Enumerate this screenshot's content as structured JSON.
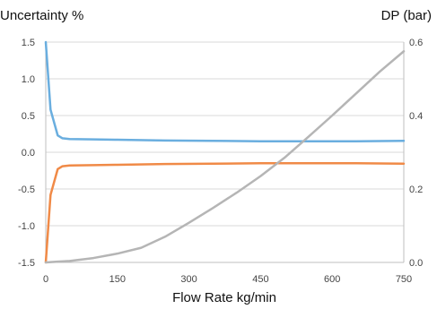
{
  "chart_data": {
    "type": "line",
    "title": "",
    "xlabel": "Flow Rate kg/min",
    "ylabel_left": "Uncertainty %",
    "ylabel_right": "DP (bar)",
    "xlim": [
      0,
      750
    ],
    "ylim_left": [
      -1.5,
      1.5
    ],
    "ylim_right": [
      0.0,
      0.6
    ],
    "x_ticks": [
      0,
      150,
      300,
      450,
      600,
      750
    ],
    "x_tick_labels": [
      "0",
      "150",
      "300",
      "450",
      "600",
      "750"
    ],
    "y_left_ticks": [
      1.5,
      1.0,
      0.5,
      0.0,
      -0.5,
      -1.0,
      -1.5
    ],
    "y_left_tick_labels": [
      "1.5",
      "1.0",
      "0.5",
      "0.0",
      "-0.5",
      "-1.0",
      "-1.5"
    ],
    "y_right_ticks": [
      0.6,
      0.4,
      0.2,
      0.0
    ],
    "y_right_tick_labels": [
      "0.6",
      "0.4",
      "0.2",
      "0.0"
    ],
    "grid": "horizontal",
    "legend": "none",
    "colors": {
      "upper_uncertainty": "#6aaedf",
      "lower_uncertainty": "#f08a47",
      "dp": "#b5b5b5",
      "grid": "#d9d9d9",
      "axis": "#bfbfbf"
    },
    "series": [
      {
        "axis": "left",
        "color": "upper_uncertainty",
        "x": [
          0,
          10,
          25,
          35,
          50,
          100,
          150,
          250,
          350,
          450,
          550,
          650,
          750
        ],
        "values": [
          1.5,
          0.58,
          0.23,
          0.19,
          0.18,
          0.175,
          0.17,
          0.16,
          0.155,
          0.15,
          0.15,
          0.15,
          0.155
        ]
      },
      {
        "axis": "left",
        "color": "lower_uncertainty",
        "x": [
          0,
          10,
          25,
          35,
          50,
          100,
          150,
          250,
          350,
          450,
          550,
          650,
          750
        ],
        "values": [
          -1.5,
          -0.58,
          -0.23,
          -0.19,
          -0.18,
          -0.175,
          -0.17,
          -0.16,
          -0.155,
          -0.15,
          -0.15,
          -0.15,
          -0.155
        ]
      },
      {
        "axis": "right",
        "color": "dp",
        "x": [
          0,
          25,
          50,
          100,
          150,
          200,
          250,
          300,
          350,
          400,
          450,
          500,
          550,
          600,
          650,
          700,
          750
        ],
        "values": [
          0.0,
          0.002,
          0.004,
          0.012,
          0.024,
          0.04,
          0.07,
          0.108,
          0.148,
          0.19,
          0.235,
          0.285,
          0.342,
          0.4,
          0.46,
          0.52,
          0.575
        ]
      }
    ]
  }
}
